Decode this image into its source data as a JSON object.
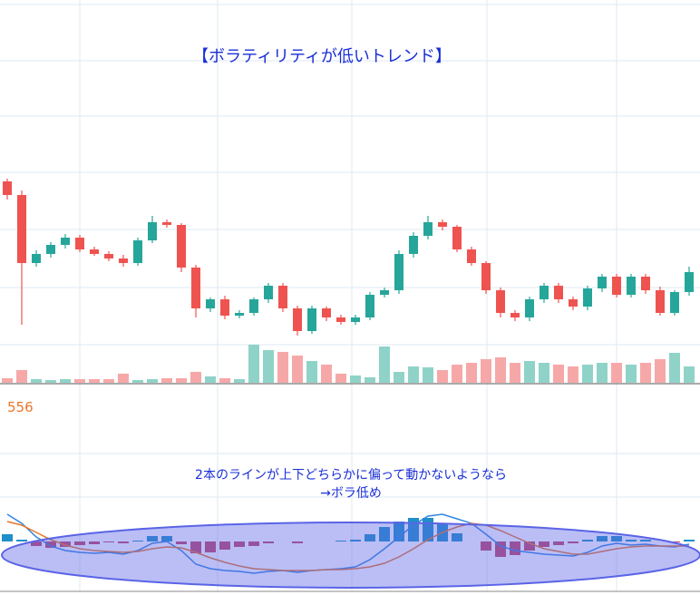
{
  "chart_data": [
    {
      "type": "candlestick",
      "title": "【ボラティリティが低いトレンド】",
      "open": [
        300,
        285,
        210,
        220,
        230,
        238,
        225,
        220,
        215,
        210,
        235,
        255,
        252,
        205,
        160,
        170,
        152,
        155,
        170,
        185,
        160,
        135,
        160,
        150,
        145,
        150,
        175,
        180,
        220,
        240,
        255,
        250,
        225,
        210,
        180,
        155,
        150,
        170,
        185,
        170,
        162,
        182,
        195,
        175,
        195,
        180,
        155,
        178
      ],
      "high": [
        303,
        290,
        224,
        233,
        242,
        241,
        228,
        223,
        219,
        238,
        262,
        258,
        254,
        208,
        172,
        174,
        158,
        172,
        188,
        188,
        163,
        163,
        162,
        153,
        153,
        178,
        183,
        224,
        244,
        262,
        258,
        252,
        228,
        212,
        183,
        158,
        173,
        188,
        188,
        173,
        185,
        198,
        198,
        198,
        198,
        184,
        180,
        206
      ],
      "low": [
        280,
        142,
        206,
        216,
        226,
        222,
        218,
        212,
        206,
        207,
        232,
        249,
        200,
        150,
        156,
        148,
        149,
        152,
        166,
        156,
        130,
        132,
        146,
        142,
        142,
        147,
        172,
        176,
        216,
        236,
        246,
        222,
        207,
        176,
        150,
        146,
        146,
        166,
        166,
        158,
        158,
        178,
        172,
        172,
        176,
        152,
        152,
        174
      ],
      "close": [
        285,
        210,
        220,
        230,
        238,
        225,
        220,
        215,
        210,
        235,
        255,
        252,
        205,
        160,
        170,
        152,
        155,
        170,
        185,
        160,
        135,
        160,
        150,
        145,
        150,
        175,
        180,
        220,
        240,
        255,
        250,
        225,
        210,
        180,
        155,
        150,
        170,
        185,
        170,
        162,
        182,
        195,
        175,
        195,
        180,
        155,
        178,
        200
      ],
      "up_color": "#26a69a",
      "down_color": "#ef5350",
      "ylim": [
        70,
        500
      ]
    },
    {
      "type": "volume",
      "values": [
        5,
        14,
        4,
        3,
        4,
        4,
        4,
        4,
        10,
        3,
        4,
        5,
        5,
        12,
        7,
        5,
        4,
        42,
        36,
        34,
        30,
        24,
        20,
        10,
        8,
        6,
        40,
        12,
        18,
        17,
        14,
        20,
        22,
        26,
        28,
        22,
        24,
        22,
        20,
        18,
        20,
        22,
        22,
        20,
        22,
        26,
        33,
        18
      ],
      "up_color": "#8fd3c8",
      "down_color": "#f6a8a8",
      "ylim": [
        0,
        100
      ]
    },
    {
      "type": "macd",
      "label": "556",
      "annotation": [
        "2本のラインが上下どちらかに偏って動かないようなら",
        "→ボラ低め"
      ],
      "series": [
        {
          "color": "#2f86e0",
          "values": [
            30,
            20,
            5,
            -5,
            -10,
            -12,
            -13,
            -12,
            -14,
            -10,
            -2,
            0,
            -10,
            -25,
            -30,
            -32,
            -33,
            -35,
            -33,
            -32,
            -34,
            -32,
            -31,
            -30,
            -28,
            -20,
            -8,
            5,
            18,
            28,
            30,
            25,
            20,
            8,
            -5,
            -10,
            -12,
            -14,
            -15,
            -16,
            -12,
            -5,
            -2,
            -4,
            -3,
            -5,
            -6,
            -3
          ]
        },
        {
          "color": "#e8762b",
          "values": [
            22,
            18,
            10,
            2,
            -4,
            -8,
            -10,
            -11,
            -12,
            -11,
            -8,
            -6,
            -7,
            -12,
            -18,
            -23,
            -27,
            -30,
            -31,
            -32,
            -32,
            -32,
            -31,
            -31,
            -30,
            -28,
            -24,
            -17,
            -8,
            2,
            10,
            16,
            20,
            18,
            12,
            5,
            -2,
            -8,
            -11,
            -14,
            -14,
            -11,
            -8,
            -6,
            -5,
            -5,
            -5,
            -5
          ]
        }
      ],
      "histogram": {
        "values": [
          8,
          2,
          -5,
          -7,
          -6,
          -4,
          -3,
          -1,
          -2,
          1,
          6,
          6,
          -3,
          -13,
          -12,
          -9,
          -6,
          -5,
          -2,
          0,
          -2,
          0,
          0,
          1,
          2,
          8,
          16,
          22,
          26,
          26,
          20,
          9,
          0,
          -10,
          -17,
          -15,
          -10,
          -6,
          -4,
          -2,
          2,
          6,
          6,
          2,
          2,
          0,
          -1,
          2
        ],
        "up_color": "#1f8fc9",
        "down_color": "#c2456a"
      },
      "ylim": [
        -50,
        50
      ]
    }
  ]
}
